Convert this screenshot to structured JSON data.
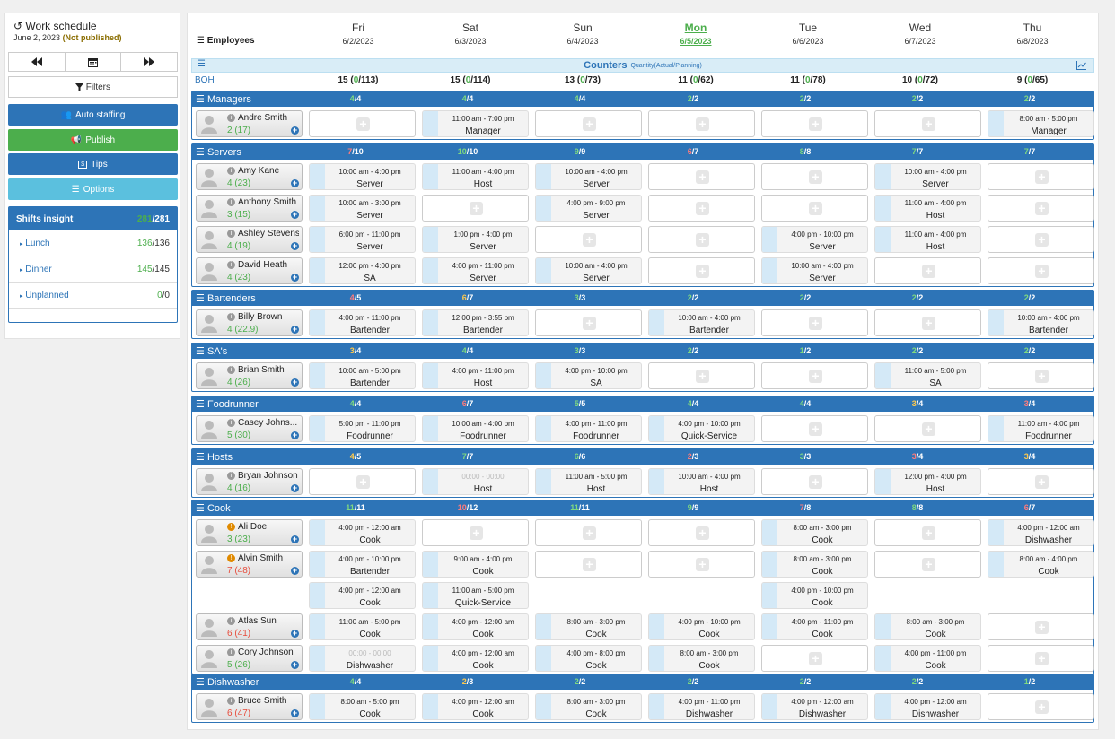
{
  "sidebar": {
    "title": "Work schedule",
    "date": "June 2, 2023",
    "status": "(Not published)",
    "filters_label": "Filters",
    "auto_staffing": "Auto staffing",
    "publish": "Publish",
    "tips": "Tips",
    "options": "Options",
    "insight": {
      "title": "Shifts insight",
      "actual": "281",
      "total": "/281",
      "rows": [
        {
          "label": "Lunch",
          "actual": "136",
          "total": "/136"
        },
        {
          "label": "Dinner",
          "actual": "145",
          "total": "/145"
        },
        {
          "label": "Unplanned",
          "actual": "0",
          "total": "/0"
        }
      ]
    }
  },
  "header": {
    "employees_label": "Employees",
    "days": [
      {
        "name": "Fri",
        "date": "6/2/2023"
      },
      {
        "name": "Sat",
        "date": "6/3/2023"
      },
      {
        "name": "Sun",
        "date": "6/4/2023"
      },
      {
        "name": "Mon",
        "date": "6/5/2023",
        "today": true
      },
      {
        "name": "Tue",
        "date": "6/6/2023"
      },
      {
        "name": "Wed",
        "date": "6/7/2023"
      },
      {
        "name": "Thu",
        "date": "6/8/2023"
      }
    ]
  },
  "counters": {
    "title": "Counters",
    "subtitle": "Quantity(Actual/Planning)",
    "row_label": "BOH",
    "values": [
      [
        "15 (",
        "0",
        "/113)"
      ],
      [
        "15 (",
        "0",
        "/114)"
      ],
      [
        "13 (",
        "0",
        "/73)"
      ],
      [
        "11 (",
        "0",
        "/62)"
      ],
      [
        "11 (",
        "0",
        "/78)"
      ],
      [
        "10 (",
        "0",
        "/72)"
      ],
      [
        "9 (",
        "0",
        "/65)"
      ]
    ]
  },
  "sections": [
    {
      "name": "Managers",
      "counts": [
        [
          "4",
          "/4",
          "g"
        ],
        [
          "4",
          "/4",
          "g"
        ],
        [
          "4",
          "/4",
          "g"
        ],
        [
          "2",
          "/2",
          "g"
        ],
        [
          "2",
          "/2",
          "g"
        ],
        [
          "2",
          "/2",
          "g"
        ],
        [
          "2",
          "/2",
          "g"
        ]
      ],
      "rows": [
        {
          "emp": {
            "name": "Andre Smith",
            "hours": "2 (17)",
            "hc": "g"
          },
          "cells": [
            null,
            [
              "11:00 am - 7:00 pm",
              "Manager"
            ],
            null,
            null,
            null,
            null,
            [
              "8:00 am - 5:00 pm",
              "Manager"
            ]
          ]
        }
      ]
    },
    {
      "name": "Servers",
      "counts": [
        [
          "7",
          "/10",
          "r"
        ],
        [
          "10",
          "/10",
          "g"
        ],
        [
          "9",
          "/9",
          "g"
        ],
        [
          "6",
          "/7",
          "r"
        ],
        [
          "8",
          "/8",
          "g"
        ],
        [
          "7",
          "/7",
          "g"
        ],
        [
          "7",
          "/7",
          "g"
        ]
      ],
      "rows": [
        {
          "emp": {
            "name": "Amy Kane",
            "hours": "4 (23)",
            "hc": "g"
          },
          "cells": [
            [
              "10:00 am - 4:00 pm",
              "Server"
            ],
            [
              "11:00 am - 4:00 pm",
              "Host"
            ],
            [
              "10:00 am - 4:00 pm",
              "Server"
            ],
            null,
            null,
            [
              "10:00 am - 4:00 pm",
              "Server"
            ],
            null
          ]
        },
        {
          "emp": {
            "name": "Anthony Smith",
            "hours": "3 (15)",
            "hc": "g"
          },
          "cells": [
            [
              "10:00 am - 3:00 pm",
              "Server"
            ],
            null,
            [
              "4:00 pm - 9:00 pm",
              "Server"
            ],
            null,
            null,
            [
              "11:00 am - 4:00 pm",
              "Host"
            ],
            null
          ]
        },
        {
          "emp": {
            "name": "Ashley Stevens",
            "hours": "4 (19)",
            "hc": "g"
          },
          "cells": [
            [
              "6:00 pm - 11:00 pm",
              "Server"
            ],
            [
              "1:00 pm - 4:00 pm",
              "Server"
            ],
            null,
            null,
            [
              "4:00 pm - 10:00 pm",
              "Server"
            ],
            [
              "11:00 am - 4:00 pm",
              "Host"
            ],
            null
          ]
        },
        {
          "emp": {
            "name": "David Heath",
            "hours": "4 (23)",
            "hc": "g"
          },
          "cells": [
            [
              "12:00 pm - 4:00 pm",
              "SA"
            ],
            [
              "4:00 pm - 11:00 pm",
              "Server"
            ],
            [
              "10:00 am - 4:00 pm",
              "Server"
            ],
            null,
            [
              "10:00 am - 4:00 pm",
              "Server"
            ],
            null,
            null
          ]
        }
      ]
    },
    {
      "name": "Bartenders",
      "counts": [
        [
          "4",
          "/5",
          "r"
        ],
        [
          "6",
          "/7",
          "o"
        ],
        [
          "3",
          "/3",
          "g"
        ],
        [
          "2",
          "/2",
          "g"
        ],
        [
          "2",
          "/2",
          "g"
        ],
        [
          "2",
          "/2",
          "g"
        ],
        [
          "2",
          "/2",
          "g"
        ]
      ],
      "rows": [
        {
          "emp": {
            "name": "Billy Brown",
            "hours": "4 (22.9)",
            "hc": "g"
          },
          "cells": [
            [
              "4:00 pm - 11:00 pm",
              "Bartender"
            ],
            [
              "12:00 pm - 3:55 pm",
              "Bartender"
            ],
            null,
            [
              "10:00 am - 4:00 pm",
              "Bartender"
            ],
            null,
            null,
            [
              "10:00 am - 4:00 pm",
              "Bartender"
            ]
          ]
        }
      ]
    },
    {
      "name": "SA's",
      "counts": [
        [
          "3",
          "/4",
          "o"
        ],
        [
          "4",
          "/4",
          "g"
        ],
        [
          "3",
          "/3",
          "g"
        ],
        [
          "2",
          "/2",
          "g"
        ],
        [
          "1",
          "/2",
          "g"
        ],
        [
          "2",
          "/2",
          "g"
        ],
        [
          "2",
          "/2",
          "g"
        ]
      ],
      "rows": [
        {
          "emp": {
            "name": "Brian Smith",
            "hours": "4 (26)",
            "hc": "g"
          },
          "cells": [
            [
              "10:00 am - 5:00 pm",
              "Bartender"
            ],
            [
              "4:00 pm - 11:00 pm",
              "Host"
            ],
            [
              "4:00 pm - 10:00 pm",
              "SA"
            ],
            null,
            null,
            [
              "11:00 am - 5:00 pm",
              "SA"
            ],
            null
          ]
        }
      ]
    },
    {
      "name": "Foodrunner",
      "counts": [
        [
          "4",
          "/4",
          "g"
        ],
        [
          "6",
          "/7",
          "r"
        ],
        [
          "5",
          "/5",
          "g"
        ],
        [
          "4",
          "/4",
          "g"
        ],
        [
          "4",
          "/4",
          "g"
        ],
        [
          "3",
          "/4",
          "o"
        ],
        [
          "3",
          "/4",
          "r"
        ]
      ],
      "rows": [
        {
          "emp": {
            "name": "Casey Johns...",
            "hours": "5 (30)",
            "hc": "g"
          },
          "cells": [
            [
              "5:00 pm - 11:00 pm",
              "Foodrunner"
            ],
            [
              "10:00 am - 4:00 pm",
              "Foodrunner"
            ],
            [
              "4:00 pm - 11:00 pm",
              "Foodrunner"
            ],
            [
              "4:00 pm - 10:00 pm",
              "Quick-Service"
            ],
            null,
            null,
            [
              "11:00 am - 4:00 pm",
              "Foodrunner"
            ]
          ]
        }
      ]
    },
    {
      "name": "Hosts",
      "counts": [
        [
          "4",
          "/5",
          "o"
        ],
        [
          "7",
          "/7",
          "g"
        ],
        [
          "6",
          "/6",
          "g"
        ],
        [
          "2",
          "/3",
          "r"
        ],
        [
          "3",
          "/3",
          "g"
        ],
        [
          "3",
          "/4",
          "r"
        ],
        [
          "3",
          "/4",
          "o"
        ]
      ],
      "rows": [
        {
          "emp": {
            "name": "Bryan Johnson",
            "hours": "4 (16)",
            "hc": "g"
          },
          "cells": [
            null,
            [
              "00:00 - 00:00",
              "Host",
              "gray"
            ],
            [
              "11:00 am - 5:00 pm",
              "Host"
            ],
            [
              "10:00 am - 4:00 pm",
              "Host"
            ],
            null,
            [
              "12:00 pm - 4:00 pm",
              "Host"
            ],
            null
          ]
        }
      ]
    },
    {
      "name": "Cook",
      "counts": [
        [
          "11",
          "/11",
          "g"
        ],
        [
          "10",
          "/12",
          "r"
        ],
        [
          "11",
          "/11",
          "g"
        ],
        [
          "9",
          "/9",
          "g"
        ],
        [
          "7",
          "/8",
          "r"
        ],
        [
          "8",
          "/8",
          "g"
        ],
        [
          "6",
          "/7",
          "r"
        ]
      ],
      "rows": [
        {
          "emp": {
            "name": "Ali Doe",
            "hours": "3 (23)",
            "hc": "g",
            "warn": true
          },
          "cells": [
            [
              "4:00 pm - 12:00 am",
              "Cook"
            ],
            null,
            null,
            null,
            [
              "8:00 am - 3:00 pm",
              "Cook"
            ],
            null,
            [
              "4:00 pm - 12:00 am",
              "Dishwasher"
            ]
          ]
        },
        {
          "emp": {
            "name": "Alvin Smith",
            "hours": "7 (48)",
            "hc": "r",
            "warn": true
          },
          "cells": [
            [
              "4:00 pm - 10:00 pm",
              "Bartender"
            ],
            [
              "9:00 am - 4:00 pm",
              "Cook"
            ],
            null,
            null,
            [
              "8:00 am - 3:00 pm",
              "Cook"
            ],
            null,
            [
              "8:00 am - 4:00 pm",
              "Cook"
            ]
          ]
        },
        {
          "emp": null,
          "cells": [
            [
              "4:00 pm - 12:00 am",
              "Cook"
            ],
            [
              "11:00 am - 5:00 pm",
              "Quick-Service"
            ],
            "skip",
            "skip",
            [
              "4:00 pm - 10:00 pm",
              "Cook"
            ],
            "skip",
            "skip"
          ]
        },
        {
          "emp": {
            "name": "Atlas Sun",
            "hours": "6 (41)",
            "hc": "r"
          },
          "cells": [
            [
              "11:00 am - 5:00 pm",
              "Cook"
            ],
            [
              "4:00 pm - 12:00 am",
              "Cook"
            ],
            [
              "8:00 am - 3:00 pm",
              "Cook"
            ],
            [
              "4:00 pm - 10:00 pm",
              "Cook"
            ],
            [
              "4:00 pm - 11:00 pm",
              "Cook"
            ],
            [
              "8:00 am - 3:00 pm",
              "Cook"
            ],
            null
          ]
        },
        {
          "emp": {
            "name": "Cory Johnson",
            "hours": "5 (26)",
            "hc": "g"
          },
          "cells": [
            [
              "00:00 - 00:00",
              "Dishwasher",
              "gray"
            ],
            [
              "4:00 pm - 12:00 am",
              "Cook"
            ],
            [
              "4:00 pm - 8:00 pm",
              "Cook"
            ],
            [
              "8:00 am - 3:00 pm",
              "Cook"
            ],
            null,
            [
              "4:00 pm - 11:00 pm",
              "Cook"
            ],
            null
          ]
        }
      ]
    },
    {
      "name": "Dishwasher",
      "counts": [
        [
          "4",
          "/4",
          "g"
        ],
        [
          "2",
          "/3",
          "o"
        ],
        [
          "2",
          "/2",
          "g"
        ],
        [
          "2",
          "/2",
          "g"
        ],
        [
          "2",
          "/2",
          "g"
        ],
        [
          "2",
          "/2",
          "g"
        ],
        [
          "1",
          "/2",
          "g"
        ]
      ],
      "rows": [
        {
          "emp": {
            "name": "Bruce Smith",
            "hours": "6 (47)",
            "hc": "r"
          },
          "cells": [
            [
              "8:00 am - 5:00 pm",
              "Cook"
            ],
            [
              "4:00 pm - 12:00 am",
              "Cook"
            ],
            [
              "8:00 am - 3:00 pm",
              "Cook"
            ],
            [
              "4:00 pm - 11:00 pm",
              "Dishwasher"
            ],
            [
              "4:00 pm - 12:00 am",
              "Dishwasher"
            ],
            [
              "4:00 pm - 12:00 am",
              "Dishwasher"
            ],
            null
          ]
        }
      ]
    }
  ]
}
